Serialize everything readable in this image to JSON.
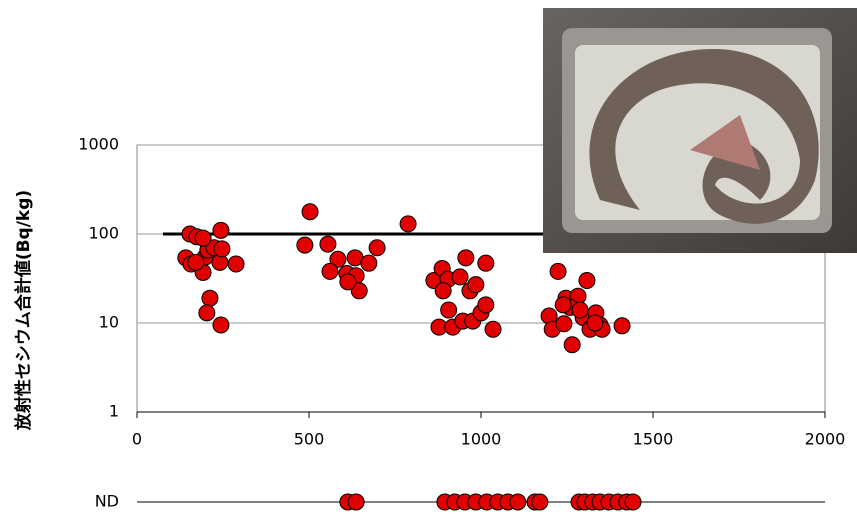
{
  "chart_data": {
    "type": "scatter",
    "y_label": "放射性セシウム合計値(Bq/kg)",
    "xlim": [
      0,
      2000
    ],
    "xticks": [
      0,
      500,
      1000,
      1500,
      2000
    ],
    "ylim": [
      1,
      1000
    ],
    "yticks": [
      1,
      10,
      100,
      1000
    ],
    "log_y": true,
    "grid": true,
    "reference_line": 100,
    "series": [
      {
        "color": "#e00000",
        "x": [
          154,
          174,
          142,
          157,
          192,
          198,
          206,
          224,
          241,
          247,
          244,
          288,
          212,
          203,
          244,
          192,
          171,
          503,
          488,
          555,
          584,
          561,
          610,
          634,
          637,
          646,
          674,
          698,
          613,
          788,
          863,
          887,
          904,
          890,
          939,
          956,
          968,
          906,
          878,
          918,
          947,
          976,
          1000,
          1014,
          985,
          1014,
          1035,
          1224,
          1198,
          1207,
          1241,
          1247,
          1282,
          1259,
          1308,
          1297,
          1265,
          1317,
          1334,
          1346,
          1352,
          1288,
          1410,
          1239,
          1331
        ],
        "values": [
          100,
          93,
          54,
          46,
          37,
          55,
          66,
          70,
          48,
          68,
          110,
          46,
          19,
          13,
          9.5,
          90,
          48,
          178,
          75,
          77,
          52,
          38,
          36,
          54,
          34,
          23,
          47,
          70,
          29,
          130,
          30,
          41,
          31,
          23,
          33,
          54,
          23,
          14,
          9,
          9,
          10.5,
          10.5,
          13,
          16,
          27,
          47,
          8.5,
          38,
          12,
          8.5,
          9.8,
          19,
          20,
          15,
          30,
          11.5,
          5.7,
          8.5,
          13,
          9.5,
          8.5,
          14,
          9.3,
          16,
          10
        ]
      }
    ],
    "nd": {
      "label": "ND",
      "x": [
        613,
        637,
        895,
        924,
        953,
        985,
        1017,
        1049,
        1078,
        1107,
        1157,
        1171,
        1285,
        1302,
        1325,
        1346,
        1372,
        1398,
        1424,
        1442
      ]
    }
  }
}
